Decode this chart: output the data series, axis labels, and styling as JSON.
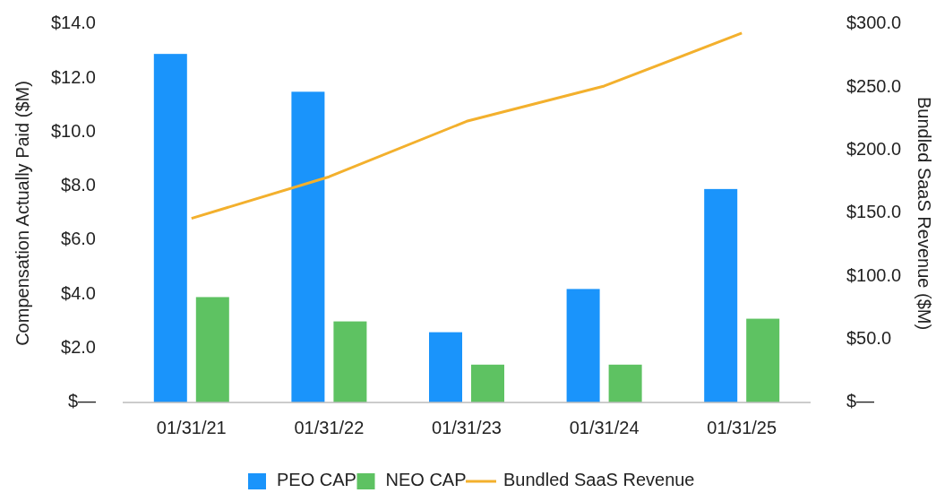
{
  "chart_data": {
    "type": "bar",
    "categories": [
      "01/31/21",
      "01/31/22",
      "01/31/23",
      "01/31/24",
      "01/31/25"
    ],
    "series": [
      {
        "name": "PEO CAP",
        "color": "#1a94fb",
        "values": [
          12.9,
          11.5,
          2.6,
          4.2,
          7.9
        ]
      },
      {
        "name": "NEO CAP",
        "color": "#5ec262",
        "values": [
          3.9,
          3.0,
          1.4,
          1.4,
          3.1
        ]
      },
      {
        "name": "Bundled SaaS Revenue",
        "color": "#f3b02d",
        "type": "line",
        "axis": "y2",
        "values": [
          146,
          179,
          223,
          251,
          293
        ]
      }
    ],
    "ylabel": "Compensation Actually Paid ($M)",
    "y2label": "Bundled SaaS Revenue ($M)",
    "ylim": [
      0,
      14
    ],
    "yticks": [
      {
        "value": 0,
        "label": "$—"
      },
      {
        "value": 2,
        "label": "$2.0"
      },
      {
        "value": 4,
        "label": "$4.0"
      },
      {
        "value": 6,
        "label": "$6.0"
      },
      {
        "value": 8,
        "label": "$8.0"
      },
      {
        "value": 10,
        "label": "$10.0"
      },
      {
        "value": 12,
        "label": "$12.0"
      },
      {
        "value": 14,
        "label": "$14.0"
      }
    ],
    "y2lim": [
      0,
      300
    ],
    "y2ticks": [
      {
        "value": 0,
        "label": "$—"
      },
      {
        "value": 50,
        "label": "$50.0"
      },
      {
        "value": 100,
        "label": "$100.0"
      },
      {
        "value": 150,
        "label": "$150.0"
      },
      {
        "value": 200,
        "label": "$200.0"
      },
      {
        "value": 250,
        "label": "$250.0"
      },
      {
        "value": 300,
        "label": "$300.0"
      }
    ],
    "legend": "bottom",
    "grid": false
  }
}
